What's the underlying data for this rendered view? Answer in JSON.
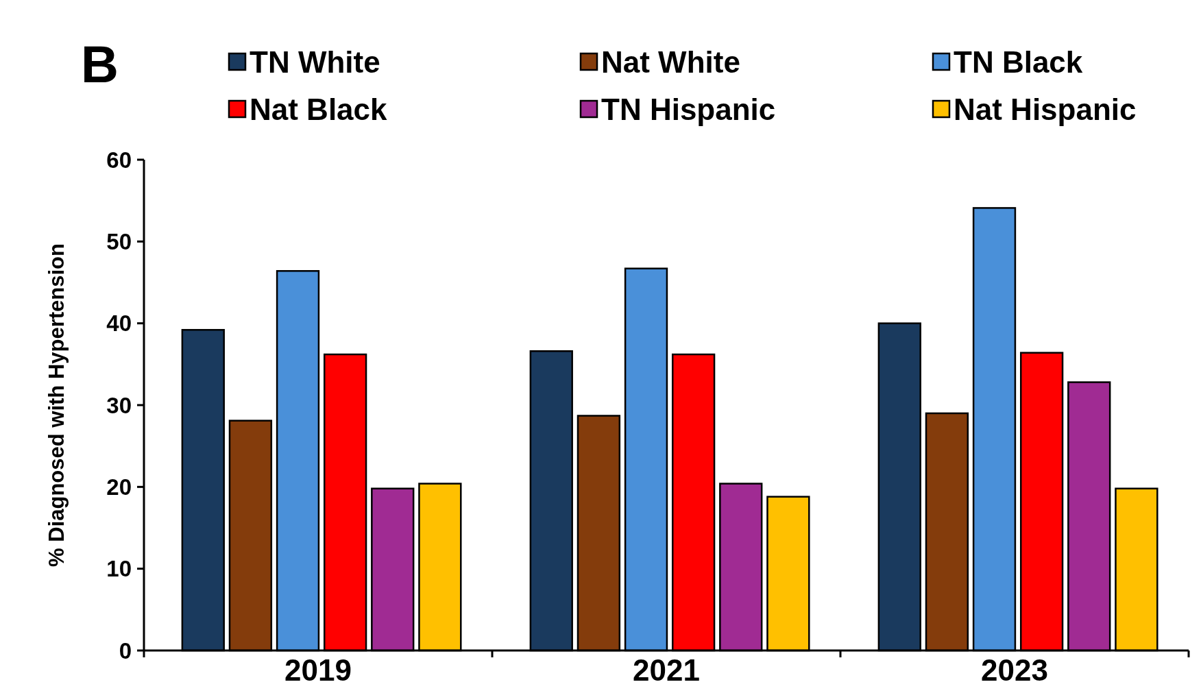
{
  "chart_data": {
    "type": "bar",
    "ylabel": "% Diagnosed with Hypertension",
    "annotations": [
      "B"
    ],
    "categories": [
      "2019",
      "2021",
      "2023"
    ],
    "ylim": [
      0,
      60
    ],
    "yticks": [
      0,
      10,
      20,
      30,
      40,
      50,
      60
    ],
    "legend": "top",
    "grid": false,
    "series": [
      {
        "name": "TN White",
        "color": "#1a3a5e",
        "values": [
          39.2,
          36.6,
          40.0
        ]
      },
      {
        "name": "Nat White",
        "color": "#843c0c",
        "values": [
          28.1,
          28.7,
          29.0
        ]
      },
      {
        "name": "TN Black",
        "color": "#4a90d9",
        "values": [
          46.4,
          46.7,
          54.1
        ]
      },
      {
        "name": "Nat Black",
        "color": "#ff0000",
        "values": [
          36.2,
          36.2,
          36.4
        ]
      },
      {
        "name": "TN Hispanic",
        "color": "#a02b93",
        "values": [
          19.8,
          20.4,
          32.8
        ]
      },
      {
        "name": "Nat Hispanic",
        "color": "#ffc000",
        "values": [
          20.4,
          18.8,
          19.8
        ]
      }
    ]
  }
}
